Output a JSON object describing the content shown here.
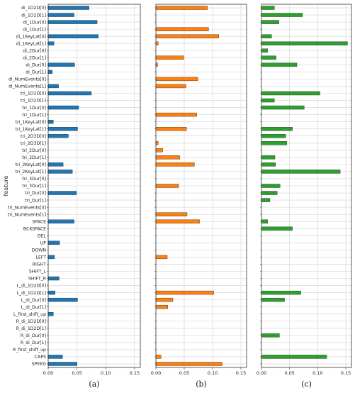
{
  "chart_data": {
    "type": "bar",
    "orientation": "horizontal",
    "ylabel": "feature",
    "grid": true,
    "xlim": [
      0,
      0.16
    ],
    "xticks": [
      0.0,
      0.05,
      0.1,
      0.15
    ],
    "xtick_labels": [
      "0.00",
      "0.05",
      "0.10",
      "0.15"
    ],
    "categories": [
      "di_1D2D[0]",
      "di_1D2D[1]",
      "di_1Dur[0]",
      "di_1Dur[1]",
      "di_1KeyLat[0]",
      "di_1KeyLat[1]",
      "di_2Dur[0]",
      "di_2Dur[1]",
      "di_Dur[0]",
      "di_Dur[1]",
      "di_NumEvents[0]",
      "di_NumEvents[1]",
      "tri_1D2D[0]",
      "tri_1D2D[1]",
      "tri_1Dur[0]",
      "tri_1Dur[1]",
      "tri_1KeyLat[0]",
      "tri_1KeyLat[1]",
      "tri_2D3D[0]",
      "tri_2D3D[1]",
      "tri_2Dur[0]",
      "tri_2Dur[1]",
      "tri_2KeyLat[0]",
      "tri_2KeyLat[1]",
      "tri_3Dur[0]",
      "tri_3Dur[1]",
      "tri_Dur[0]",
      "tri_Dur[1]",
      "tri_NumEvents[0]",
      "tri_NumEvents[1]",
      "SPACE",
      "BCKSPACE",
      "DEL",
      "UP",
      "DOWN",
      "LEFT",
      "RIGHT",
      "SHIFT_L",
      "SHIFT_R",
      "L_di_1D2D[0]",
      "L_di_1D2D[1]",
      "L_di_Dur[0]",
      "L_di_Dur[1]",
      "L_first_shift_up",
      "R_di_1D2D[0]",
      "R_di_1D2D[1]",
      "R_di_Dur[0]",
      "R_di_Dur[1]",
      "R_first_shift_up",
      "CAPS",
      "SPEED"
    ],
    "panels": [
      {
        "caption": "(a)",
        "color": "#1f77b4",
        "values": [
          0.071,
          0.045,
          0.085,
          0.0,
          0.087,
          0.01,
          0.0,
          0.0,
          0.046,
          0.007,
          0.0,
          0.018,
          0.075,
          0.0,
          0.053,
          0.0,
          0.009,
          0.051,
          0.035,
          0.0,
          0.0,
          0.0,
          0.026,
          0.042,
          0.0,
          0.0,
          0.049,
          0.0,
          0.0,
          0.0,
          0.045,
          0.0,
          0.0,
          0.02,
          0.0,
          0.011,
          0.0,
          0.0,
          0.019,
          0.0,
          0.012,
          0.051,
          0.0,
          0.009,
          0.0,
          0.0,
          0.0,
          0.0,
          0.0,
          0.025,
          0.05
        ]
      },
      {
        "caption": "(b)",
        "color": "#ff7f0e",
        "values": [
          0.091,
          0.0,
          0.0,
          0.093,
          0.111,
          0.004,
          0.0,
          0.049,
          0.003,
          0.0,
          0.074,
          0.053,
          0.0,
          0.0,
          0.0,
          0.072,
          0.0,
          0.054,
          0.0,
          0.004,
          0.012,
          0.042,
          0.068,
          0.0,
          0.0,
          0.04,
          0.0,
          0.0,
          0.0,
          0.055,
          0.077,
          0.0,
          0.0,
          0.0,
          0.0,
          0.02,
          0.0,
          0.0,
          0.0,
          0.0,
          0.102,
          0.03,
          0.021,
          0.0,
          0.0,
          0.0,
          0.0,
          0.0,
          0.0,
          0.009,
          0.117
        ]
      },
      {
        "caption": "(c)",
        "color": "#2ca02c",
        "values": [
          0.023,
          0.073,
          0.031,
          0.0,
          0.018,
          0.153,
          0.011,
          0.026,
          0.063,
          0.0,
          0.0,
          0.0,
          0.104,
          0.023,
          0.076,
          0.0,
          0.0,
          0.055,
          0.043,
          0.045,
          0.0,
          0.024,
          0.025,
          0.14,
          0.0,
          0.033,
          0.028,
          0.015,
          0.0,
          0.0,
          0.011,
          0.055,
          0.0,
          0.0,
          0.0,
          0.0,
          0.0,
          0.0,
          0.0,
          0.0,
          0.07,
          0.041,
          0.0,
          0.0,
          0.0,
          0.0,
          0.032,
          0.0,
          0.0,
          0.116,
          0.0
        ]
      }
    ]
  }
}
